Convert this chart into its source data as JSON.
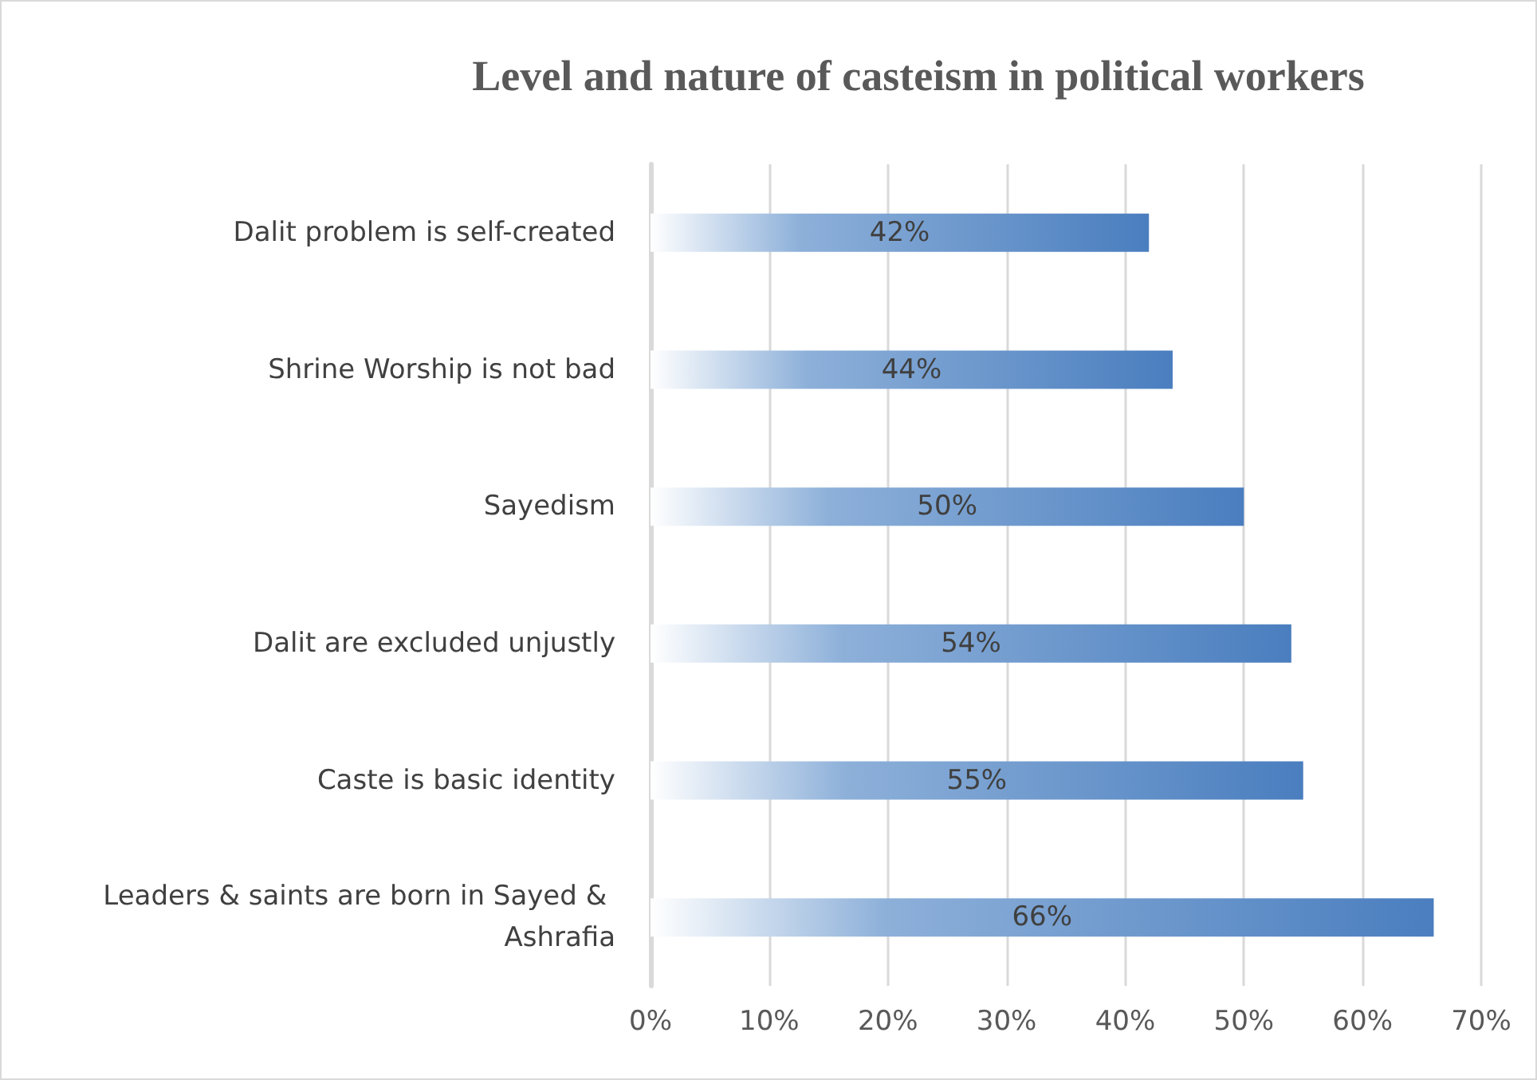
{
  "chart_data": {
    "type": "bar",
    "orientation": "horizontal",
    "title": "Level and nature of casteism in political workers",
    "categories": [
      "Dalit problem is self-created",
      "Shrine Worship is not bad",
      "Sayedism",
      "Dalit are excluded unjustly",
      "Caste is basic identity",
      "Leaders & saints are born in Sayed & Ashrafia"
    ],
    "values": [
      42,
      44,
      50,
      54,
      55,
      66
    ],
    "value_labels": [
      "42%",
      "44%",
      "50%",
      "54%",
      "55%",
      "66%"
    ],
    "color": "#4a7ebf",
    "xlim": [
      0,
      70
    ],
    "xticks": [
      {
        "value": 0,
        "label": "0%"
      },
      {
        "value": 10,
        "label": "10%"
      },
      {
        "value": 20,
        "label": "20%"
      },
      {
        "value": 30,
        "label": "30%"
      },
      {
        "value": 40,
        "label": "40%"
      },
      {
        "value": 50,
        "label": "50%"
      },
      {
        "value": 60,
        "label": "60%"
      },
      {
        "value": 70,
        "label": "70%"
      }
    ],
    "grid": "x"
  }
}
